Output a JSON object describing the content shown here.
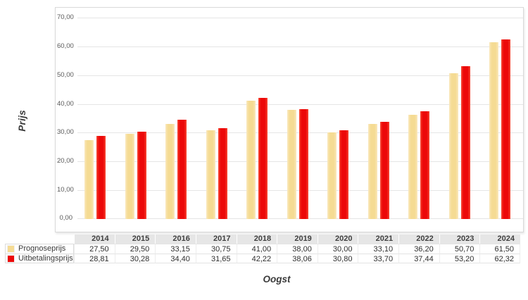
{
  "chart_data": {
    "type": "bar",
    "title": "",
    "categories": [
      "2014",
      "2015",
      "2016",
      "2017",
      "2018",
      "2019",
      "2020",
      "2021",
      "2022",
      "2023",
      "2024"
    ],
    "series": [
      {
        "name": "Prognoseprijs",
        "color": "#F5DB93",
        "values": [
          27.5,
          29.5,
          33.15,
          30.75,
          41.0,
          38.0,
          30.0,
          33.1,
          36.2,
          50.7,
          61.5
        ]
      },
      {
        "name": "Uitbetalingsprijs",
        "color": "#EC0909",
        "values": [
          28.81,
          30.28,
          34.4,
          31.65,
          42.22,
          38.06,
          30.8,
          33.7,
          37.44,
          53.2,
          62.32
        ]
      }
    ],
    "xlabel": "Oogst",
    "ylabel": "Prijs",
    "ylim": [
      0,
      70
    ],
    "ytick_interval": 10,
    "yticks": [
      {
        "value": 70,
        "label": "70,00"
      },
      {
        "value": 60,
        "label": "60,00"
      },
      {
        "value": 50,
        "label": "50,00"
      },
      {
        "value": 40,
        "label": "40,00"
      },
      {
        "value": 30,
        "label": "30,00"
      },
      {
        "value": 20,
        "label": "20,00"
      },
      {
        "value": 10,
        "label": "10,00"
      },
      {
        "value": 0,
        "label": "0,00"
      }
    ],
    "grid": true,
    "legend_position": "left-of-data-table"
  },
  "axes": {
    "y_title": "Prijs",
    "x_title": "Oogst"
  },
  "data_table": {
    "corner_label": "",
    "years": [
      "2014",
      "2015",
      "2016",
      "2017",
      "2018",
      "2019",
      "2020",
      "2021",
      "2022",
      "2023",
      "2024"
    ],
    "rows": [
      {
        "label": "Prognoseprijs",
        "swatch_color": "#F5DB93",
        "values": [
          "27,50",
          "29,50",
          "33,15",
          "30,75",
          "41,00",
          "38,00",
          "30,00",
          "33,10",
          "36,20",
          "50,70",
          "61,50"
        ]
      },
      {
        "label": "Uitbetalingsprijs",
        "swatch_color": "#EC0909",
        "values": [
          "28,81",
          "30,28",
          "34,40",
          "31,65",
          "42,22",
          "38,06",
          "30,80",
          "33,70",
          "37,44",
          "53,20",
          "62,32"
        ]
      }
    ]
  },
  "colors": {
    "prognose_bar": "#F5DB93",
    "uitbetaling_bar": "#EC0909",
    "gridline": "#E5E5E5",
    "chart_border": "#D9D9D9",
    "table_header_bg": "#E6E6E6",
    "table_border": "#DCDCDC",
    "tick_text": "#595959",
    "title_text": "#3A3A3A"
  }
}
